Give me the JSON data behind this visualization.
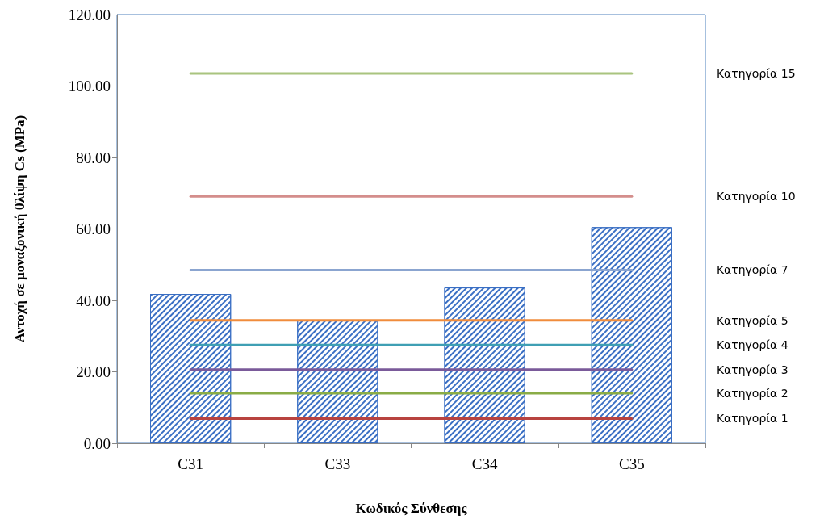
{
  "chart_data": {
    "type": "bar",
    "xlabel": "Κωδικός Σύνθεσης",
    "ylabel": "Αντοχή σε μοναξονική θλίψη Cs (MPa)",
    "categories": [
      "C31",
      "C33",
      "C34",
      "C35"
    ],
    "series": [
      {
        "color": "#3a6fc4",
        "values": [
          41.8,
          34.4,
          43.6,
          60.5
        ]
      },
      {
        "type": "line",
        "name": "Κατηγορία 15",
        "color": "#a9c47f",
        "values": [
          103.5,
          103.5,
          103.5,
          103.5
        ]
      },
      {
        "type": "line",
        "name": "Κατηγορία 10",
        "color": "#d48e8c",
        "values": [
          69.1,
          69.1,
          69.1,
          69.1
        ]
      },
      {
        "type": "line",
        "name": "Κατηγορία 7",
        "color": "#8ba5d0",
        "values": [
          48.5,
          48.5,
          48.5,
          48.5
        ]
      },
      {
        "type": "line",
        "name": "Κατηγορία 5",
        "color": "#f08c3c",
        "values": [
          34.4,
          34.4,
          34.4,
          34.4
        ]
      },
      {
        "type": "line",
        "name": "Κατηγορία 4",
        "color": "#3f9fb4",
        "values": [
          27.5,
          27.5,
          27.5,
          27.5
        ]
      },
      {
        "type": "line",
        "name": "Κατηγορία 3",
        "color": "#7a5a9a",
        "values": [
          20.6,
          20.6,
          20.6,
          20.6
        ]
      },
      {
        "type": "line",
        "name": "Κατηγορία 2",
        "color": "#8aac46",
        "values": [
          14.0,
          14.0,
          14.0,
          14.0
        ]
      },
      {
        "type": "line",
        "name": "Κατηγορία 1",
        "color": "#b8433f",
        "values": [
          6.9,
          6.9,
          6.9,
          6.9
        ]
      }
    ],
    "ylim": [
      0,
      120
    ],
    "yticks": [
      {
        "value": 0,
        "label": "0.00"
      },
      {
        "value": 20,
        "label": "20.00"
      },
      {
        "value": 40,
        "label": "40.00"
      },
      {
        "value": 60,
        "label": "60.00"
      },
      {
        "value": 80,
        "label": "80.00"
      },
      {
        "value": 100,
        "label": "100.00"
      },
      {
        "value": 120,
        "label": "120.00"
      }
    ],
    "grid": false,
    "legend": false,
    "marker": "none",
    "line_style": "solid"
  }
}
